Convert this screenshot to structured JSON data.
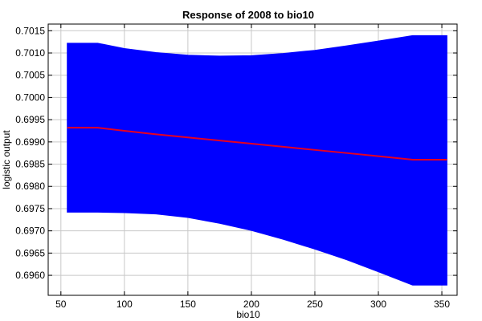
{
  "chart_data": {
    "type": "area",
    "title": "Response of 2008 to bio10",
    "xlabel": "bio10",
    "ylabel": "logistic output",
    "xlim": [
      40,
      362
    ],
    "ylim": [
      0.69555,
      0.70165
    ],
    "x_ticks": [
      50,
      100,
      150,
      200,
      250,
      300,
      350
    ],
    "y_ticks": [
      0.696,
      0.6965,
      0.697,
      0.6975,
      0.698,
      0.6985,
      0.699,
      0.6995,
      0.7,
      0.7005,
      0.701,
      0.7015
    ],
    "x_tick_labels": [
      "50",
      "100",
      "150",
      "200",
      "250",
      "300",
      "350"
    ],
    "y_tick_labels": [
      "0.6960",
      "0.6965",
      "0.6970",
      "0.6975",
      "0.6980",
      "0.6985",
      "0.6990",
      "0.6995",
      "0.7000",
      "0.7005",
      "0.7010",
      "0.7015"
    ],
    "grid": true,
    "colors": {
      "band": "#0000ff",
      "line": "#e8001f"
    },
    "x": [
      55,
      79,
      100,
      125,
      150,
      175,
      200,
      225,
      250,
      275,
      300,
      327,
      354
    ],
    "mean": [
      0.69932,
      0.69932,
      0.69925,
      0.69917,
      0.6991,
      0.69903,
      0.69896,
      0.69889,
      0.69882,
      0.69875,
      0.69868,
      0.6986,
      0.6986
    ],
    "upper": [
      0.70122,
      0.70122,
      0.7011,
      0.70101,
      0.70095,
      0.70093,
      0.70094,
      0.70099,
      0.70106,
      0.70116,
      0.70127,
      0.70139,
      0.70139
    ],
    "lower": [
      0.69742,
      0.69742,
      0.69741,
      0.69738,
      0.6973,
      0.69717,
      0.69701,
      0.69681,
      0.69659,
      0.69635,
      0.69608,
      0.69578,
      0.69578
    ]
  }
}
